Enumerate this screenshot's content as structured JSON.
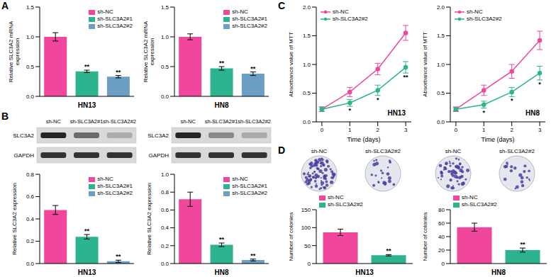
{
  "panel_labels": [
    "A",
    "B",
    "C",
    "D"
  ],
  "chart_data": [
    {
      "type": "bar",
      "xlabel": "HN13",
      "ylabel": "Relative SLC3A2 mRNA expression",
      "categories": [
        "sh-NC",
        "sh-SLC3A2#1",
        "sh-SLC3A2#2"
      ],
      "values": [
        1.0,
        0.42,
        0.33
      ],
      "errors": [
        0.07,
        0.02,
        0.02
      ],
      "significance": [
        null,
        "**",
        "**"
      ],
      "colors": [
        "#f0469b",
        "#2db48e",
        "#6b9fc4"
      ],
      "ylim": [
        0,
        1.5
      ],
      "yticks": [
        {
          "value": 0,
          "label": "0.0"
        },
        0.5,
        {
          "value": 1,
          "label": "1.0"
        },
        1.5
      ],
      "legend": "upper right",
      "tick_labels": "y"
    },
    {
      "type": "bar",
      "xlabel": "HN8",
      "ylabel": "Relative SLC3A2 mRNA expression",
      "categories": [
        "sh-NC",
        "sh-SLC3A2#1",
        "sh-SLC3A2#2"
      ],
      "values": [
        1.0,
        0.47,
        0.38
      ],
      "errors": [
        0.05,
        0.03,
        0.03
      ],
      "significance": [
        null,
        "**",
        "**"
      ],
      "colors": [
        "#f0469b",
        "#2db48e",
        "#6b9fc4"
      ],
      "ylim": [
        0,
        1.5
      ],
      "yticks": [
        {
          "value": 0,
          "label": "0.0"
        },
        0.5,
        {
          "value": 1,
          "label": "1.0"
        },
        1.5
      ],
      "legend": "upper right",
      "tick_labels": "y"
    },
    {
      "type": "bar",
      "xlabel": "HN13",
      "ylabel": "Relative SLC3A2 expression",
      "categories": [
        "sh-NC",
        "sh-SLC3A2#1",
        "sh-SLC3A2#2"
      ],
      "values": [
        0.48,
        0.24,
        0.02
      ],
      "errors": [
        0.04,
        0.02,
        0.01
      ],
      "significance": [
        null,
        "**",
        "**"
      ],
      "colors": [
        "#f0469b",
        "#2db48e",
        "#6b9fc4"
      ],
      "ylim": [
        0,
        0.8
      ],
      "yticks": [
        {
          "value": 0,
          "label": "0.0"
        },
        0.2,
        0.4,
        0.6,
        0.8
      ],
      "legend": "upper right",
      "tick_labels": "y"
    },
    {
      "type": "bar",
      "xlabel": "HN8",
      "ylabel": "Relative SLC3A2 expression",
      "categories": [
        "sh-NC",
        "sh-SLC3A2#1",
        "sh-SLC3A2#2"
      ],
      "values": [
        0.72,
        0.21,
        0.04
      ],
      "errors": [
        0.08,
        0.02,
        0.01
      ],
      "significance": [
        null,
        "**",
        "**"
      ],
      "colors": [
        "#f0469b",
        "#2db48e",
        "#6b9fc4"
      ],
      "ylim": [
        0,
        1.0
      ],
      "yticks": [
        {
          "value": 0,
          "label": "0.0"
        },
        0.2,
        0.4,
        0.6,
        0.8,
        {
          "value": 1,
          "label": "1.0"
        }
      ],
      "legend": "upper right",
      "tick_labels": "y"
    },
    {
      "type": "line",
      "annotation": "HN13",
      "xlabel": "Time (days)",
      "ylabel": "Absorbance value of MTT",
      "x": [
        0,
        1,
        2,
        3
      ],
      "xlim": [
        -0.2,
        3.2
      ],
      "xticks": [
        0,
        1,
        2,
        3
      ],
      "ylim": [
        0,
        2.0
      ],
      "yticks": [
        {
          "value": 0,
          "label": "0.0"
        },
        0.5,
        {
          "value": 1,
          "label": "1.0"
        },
        1.5,
        {
          "value": 2,
          "label": "2.0"
        }
      ],
      "legend": "upper left",
      "marker": "circle",
      "line_style": "solid",
      "series": [
        {
          "name": "sh-NC",
          "color": "#f0469b",
          "values": [
            0.22,
            0.52,
            0.92,
            1.55
          ],
          "errors": [
            0.04,
            0.08,
            0.1,
            0.13
          ]
        },
        {
          "name": "sh-SLC3A2#2",
          "color": "#2db48e",
          "values": [
            0.22,
            0.33,
            0.55,
            0.95
          ],
          "errors": [
            0.04,
            0.06,
            0.09,
            0.1
          ],
          "significance": [
            null,
            "*",
            "*",
            "**"
          ]
        }
      ]
    },
    {
      "type": "line",
      "annotation": "HN8",
      "xlabel": "Time (days)",
      "ylabel": "Absorbance value of MTT",
      "x": [
        0,
        1,
        2,
        3
      ],
      "xlim": [
        -0.2,
        3.2
      ],
      "xticks": [
        0,
        1,
        2,
        3
      ],
      "ylim": [
        0,
        2.0
      ],
      "yticks": [
        {
          "value": 0,
          "label": "0.0"
        },
        0.5,
        {
          "value": 1,
          "label": "1.0"
        },
        1.5,
        {
          "value": 2,
          "label": "2.0"
        }
      ],
      "legend": "upper left",
      "marker": "circle",
      "line_style": "solid",
      "series": [
        {
          "name": "sh-NC",
          "color": "#f0469b",
          "values": [
            0.22,
            0.55,
            0.88,
            1.42
          ],
          "errors": [
            0.04,
            0.09,
            0.12,
            0.16
          ]
        },
        {
          "name": "sh-SLC3A2#2",
          "color": "#2db48e",
          "values": [
            0.22,
            0.3,
            0.52,
            0.85
          ],
          "errors": [
            0.03,
            0.06,
            0.08,
            0.12
          ],
          "significance": [
            null,
            "*",
            "*",
            "*"
          ]
        }
      ]
    },
    {
      "type": "bar",
      "xlabel": "HN13",
      "ylabel": "Number of colonies",
      "categories": [
        "sh-NC",
        "sh-SLC3A2#2"
      ],
      "values": [
        87,
        23
      ],
      "errors": [
        9,
        2
      ],
      "significance": [
        null,
        "**"
      ],
      "colors": [
        "#f0469b",
        "#2db48e"
      ],
      "ylim": [
        0,
        150
      ],
      "yticks": [
        0,
        50,
        100,
        150
      ],
      "legend": "upper left",
      "tick_labels": "y"
    },
    {
      "type": "bar",
      "xlabel": "HN8",
      "ylabel": "Number of colonies",
      "categories": [
        "sh-NC",
        "sh-SLC3A2#2"
      ],
      "values": [
        54,
        20
      ],
      "errors": [
        6,
        3
      ],
      "significance": [
        null,
        "**"
      ],
      "colors": [
        "#f0469b",
        "#2db48e"
      ],
      "ylim": [
        0,
        80
      ],
      "yticks": [
        0,
        20,
        40,
        60,
        80
      ],
      "legend": "upper left",
      "tick_labels": "y"
    }
  ],
  "blots": [
    {
      "lanes": [
        "sh-NC",
        "sh-SLC3A2#1",
        "sh-SLC3A2#2"
      ],
      "bands": [
        "SLC3A2",
        "GAPDH"
      ]
    },
    {
      "lanes": [
        "sh-NC",
        "sh-SLC3A2#1",
        "sh-SLC3A2#2"
      ],
      "bands": [
        "SLC3A2",
        "GAPDH"
      ]
    }
  ],
  "colony_dishes": [
    {
      "groups": [
        "sh-NC",
        "sh-SLC3A2#2"
      ]
    },
    {
      "groups": [
        "sh-NC",
        "sh-SLC3A2#2"
      ]
    }
  ]
}
